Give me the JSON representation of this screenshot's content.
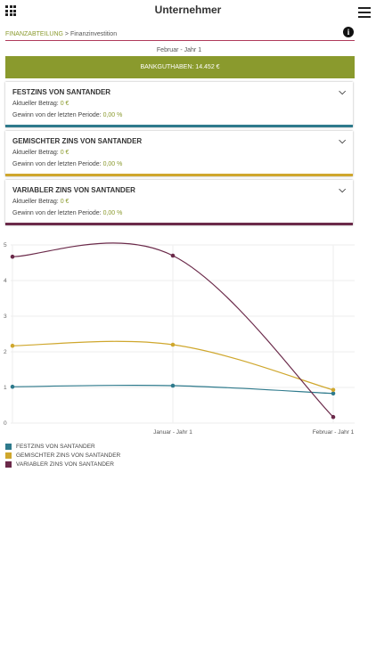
{
  "header": {
    "title": "Unternehmer",
    "grid_icon": "apps-grid-icon",
    "menu_icon": "hamburger-menu-icon"
  },
  "breadcrumb": {
    "parent": "FINANZABTEILUNG",
    "separator": ">",
    "current": "Finanzinvestition",
    "info_icon": "info-icon"
  },
  "period": "Februar - Jahr 1",
  "balance": "BANKGUTHABEN: 14.452 €",
  "colors": {
    "accent": "#8a9a2d",
    "breadcrumb_line": "#b03a5b",
    "fest": "#2e7a8c",
    "gemischt": "#cfa72d",
    "variabel": "#6b2a4a"
  },
  "cards": [
    {
      "title": "FESTZINS VON SANTANDER",
      "amount_label": "Aktueller Betrag:",
      "amount_value": "0 €",
      "gain_label": "Gewinn von der letzten Periode:",
      "gain_value": "0,00 %",
      "color": "#2e7a8c"
    },
    {
      "title": "GEMISCHTER ZINS VON SANTANDER",
      "amount_label": "Aktueller Betrag:",
      "amount_value": "0 €",
      "gain_label": "Gewinn von der letzten Periode:",
      "gain_value": "0,00 %",
      "color": "#cfa72d"
    },
    {
      "title": "VARIABLER ZINS VON SANTANDER",
      "amount_label": "Aktueller Betrag:",
      "amount_value": "0 €",
      "gain_label": "Gewinn von der letzten Periode:",
      "gain_value": "0,00 %",
      "color": "#6b2a4a"
    }
  ],
  "chart_data": {
    "type": "line",
    "x": [
      "",
      "Januar - Jahr 1",
      "Februar - Jahr 1"
    ],
    "ylim": [
      0,
      5
    ],
    "yticks": [
      "0",
      "1",
      "2",
      "3",
      "4",
      "5"
    ],
    "grid": true,
    "legend_position": "bottom-left",
    "series": [
      {
        "name": "FESTZINS VON SANTANDER",
        "color": "#2e7a8c",
        "values": [
          1.02,
          1.05,
          0.83
        ]
      },
      {
        "name": "GEMISCHTER ZINS VON SANTANDER",
        "color": "#cfa72d",
        "values": [
          2.17,
          2.2,
          0.93
        ]
      },
      {
        "name": "VARIABLER ZINS VON SANTANDER",
        "color": "#6b2a4a",
        "values": [
          4.67,
          4.7,
          0.17
        ]
      }
    ]
  }
}
